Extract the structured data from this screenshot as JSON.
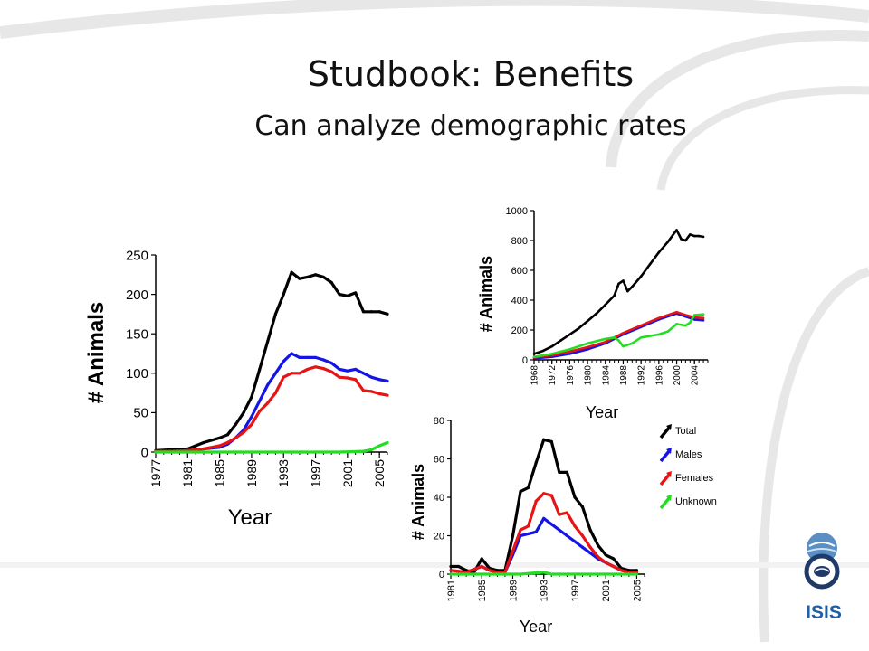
{
  "slide": {
    "title": "Studbook: Benefits",
    "subtitle": "Can analyze demographic rates"
  },
  "logo": {
    "text": "ISIS",
    "color": "#1f5fa6"
  },
  "chart_data": [
    {
      "type": "line",
      "xlabel": "Year",
      "ylabel": "# Animals",
      "xlim": [
        1977,
        2006
      ],
      "ylim": [
        0,
        250
      ],
      "yticks": [
        0,
        50,
        100,
        150,
        200,
        250
      ],
      "xticks": [
        1977,
        1981,
        1985,
        1989,
        1993,
        1997,
        2001,
        2005
      ],
      "series": [
        {
          "color": "#000000",
          "x": [
            1977,
            1979,
            1981,
            1982,
            1983,
            1984,
            1985,
            1986,
            1987,
            1988,
            1989,
            1990,
            1991,
            1992,
            1993,
            1994,
            1995,
            1996,
            1997,
            1998,
            1999,
            2000,
            2001,
            2002,
            2003,
            2004,
            2005,
            2006
          ],
          "y": [
            2,
            3,
            4,
            8,
            12,
            15,
            18,
            22,
            35,
            50,
            70,
            105,
            140,
            175,
            200,
            228,
            220,
            222,
            225,
            222,
            215,
            200,
            198,
            202,
            178,
            178,
            178,
            175
          ]
        },
        {
          "color": "#1414e6",
          "x": [
            1977,
            1979,
            1981,
            1983,
            1985,
            1986,
            1987,
            1988,
            1989,
            1990,
            1991,
            1992,
            1993,
            1994,
            1995,
            1996,
            1997,
            1998,
            1999,
            2000,
            2001,
            2002,
            2003,
            2004,
            2005,
            2006
          ],
          "y": [
            1,
            1,
            2,
            4,
            6,
            10,
            18,
            28,
            45,
            65,
            85,
            100,
            115,
            125,
            120,
            120,
            120,
            117,
            113,
            105,
            103,
            105,
            100,
            95,
            92,
            90
          ]
        },
        {
          "color": "#e61414",
          "x": [
            1977,
            1979,
            1981,
            1983,
            1985,
            1986,
            1987,
            1988,
            1989,
            1990,
            1991,
            1992,
            1993,
            1994,
            1995,
            1996,
            1997,
            1998,
            1999,
            2000,
            2001,
            2002,
            2003,
            2004,
            2005,
            2006
          ],
          "y": [
            1,
            1,
            2,
            4,
            8,
            12,
            18,
            25,
            35,
            52,
            62,
            75,
            95,
            100,
            100,
            105,
            108,
            106,
            102,
            95,
            94,
            92,
            78,
            77,
            74,
            72
          ]
        },
        {
          "color": "#22dd22",
          "x": [
            1977,
            1990,
            2000,
            2003,
            2004,
            2005,
            2006
          ],
          "y": [
            0,
            0,
            0,
            1,
            3,
            8,
            12
          ]
        }
      ]
    },
    {
      "type": "line",
      "xlabel": "Year",
      "ylabel": "# Animals",
      "xlim": [
        1968,
        2007
      ],
      "ylim": [
        0,
        1000
      ],
      "yticks": [
        0,
        200,
        400,
        600,
        800,
        1000
      ],
      "xticks": [
        1968,
        1972,
        1976,
        1980,
        1984,
        1988,
        1992,
        1996,
        2000,
        2004
      ],
      "series": [
        {
          "color": "#000000",
          "x": [
            1968,
            1970,
            1972,
            1974,
            1976,
            1978,
            1980,
            1982,
            1984,
            1986,
            1987,
            1988,
            1989,
            1990,
            1992,
            1994,
            1996,
            1998,
            2000,
            2001,
            2002,
            2003,
            2004,
            2005,
            2006
          ],
          "y": [
            40,
            60,
            90,
            130,
            170,
            210,
            260,
            310,
            370,
            430,
            510,
            530,
            460,
            490,
            560,
            640,
            720,
            790,
            870,
            810,
            800,
            840,
            830,
            830,
            825
          ]
        },
        {
          "color": "#1414e6",
          "x": [
            1968,
            1972,
            1976,
            1980,
            1984,
            1988,
            1992,
            1996,
            2000,
            2002,
            2004,
            2006
          ],
          "y": [
            10,
            20,
            40,
            70,
            110,
            170,
            220,
            270,
            310,
            290,
            270,
            265
          ]
        },
        {
          "color": "#e61414",
          "x": [
            1968,
            1972,
            1976,
            1980,
            1984,
            1988,
            1992,
            1996,
            2000,
            2002,
            2004,
            2006
          ],
          "y": [
            15,
            30,
            55,
            85,
            120,
            180,
            230,
            280,
            320,
            300,
            285,
            280
          ]
        },
        {
          "color": "#22dd22",
          "x": [
            1968,
            1972,
            1976,
            1980,
            1984,
            1986,
            1987,
            1988,
            1990,
            1992,
            1996,
            1998,
            2000,
            2002,
            2003,
            2004,
            2006
          ],
          "y": [
            20,
            40,
            70,
            110,
            140,
            150,
            130,
            90,
            110,
            150,
            170,
            190,
            240,
            230,
            250,
            300,
            305
          ]
        }
      ]
    },
    {
      "type": "line",
      "xlabel": "Year",
      "ylabel": "# Animals",
      "xlim": [
        1981,
        2006
      ],
      "ylim": [
        0,
        80
      ],
      "yticks": [
        0,
        20,
        40,
        60,
        80
      ],
      "xticks": [
        1981,
        1985,
        1989,
        1993,
        1997,
        2001,
        2005
      ],
      "legend": {
        "position": "right",
        "entries": [
          "Total",
          "Males",
          "Females",
          "Unknown"
        ]
      },
      "series": [
        {
          "name": "Total",
          "color": "#000000",
          "x": [
            1981,
            1982,
            1983,
            1984,
            1985,
            1986,
            1987,
            1988,
            1989,
            1990,
            1991,
            1992,
            1993,
            1994,
            1995,
            1996,
            1997,
            1998,
            1999,
            2000,
            2001,
            2002,
            2003,
            2004,
            2005
          ],
          "y": [
            4,
            4,
            2,
            1,
            8,
            3,
            2,
            2,
            20,
            43,
            45,
            58,
            70,
            69,
            53,
            53,
            40,
            35,
            23,
            15,
            10,
            8,
            3,
            2,
            2
          ]
        },
        {
          "name": "Males",
          "color": "#1414e6",
          "x": [
            1981,
            1983,
            1985,
            1986,
            1987,
            1988,
            1989,
            1990,
            1991,
            1992,
            1993,
            1994,
            1995,
            1996,
            1997,
            1998,
            1999,
            2000,
            2001,
            2002,
            2003,
            2004,
            2005
          ],
          "y": [
            2,
            1,
            4,
            2,
            1,
            1,
            10,
            20,
            21,
            22,
            29,
            26,
            23,
            20,
            17,
            14,
            11,
            8,
            6,
            4,
            2,
            1,
            1
          ]
        },
        {
          "name": "Females",
          "color": "#e61414",
          "x": [
            1981,
            1983,
            1985,
            1986,
            1987,
            1988,
            1989,
            1990,
            1991,
            1992,
            1993,
            1994,
            1995,
            1996,
            1997,
            1998,
            1999,
            2000,
            2001,
            2002,
            2003,
            2004,
            2005
          ],
          "y": [
            2,
            1,
            4,
            2,
            1,
            1,
            12,
            23,
            25,
            38,
            42,
            41,
            31,
            32,
            25,
            20,
            14,
            9,
            6,
            4,
            2,
            1,
            1
          ]
        },
        {
          "name": "Unknown",
          "color": "#22dd22",
          "x": [
            1981,
            1990,
            1993,
            1994,
            1995,
            2005
          ],
          "y": [
            0,
            0,
            1,
            0,
            0,
            0
          ]
        }
      ]
    }
  ]
}
